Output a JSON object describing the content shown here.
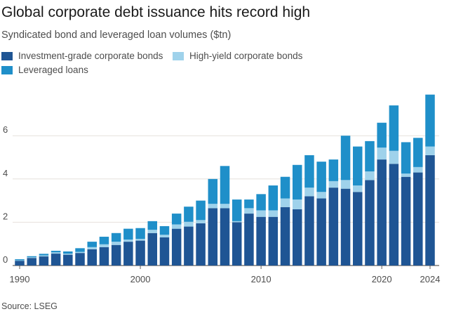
{
  "header": {
    "title": "Global corporate debt issuance hits record high",
    "subtitle": "Syndicated bond and leveraged loan volumes ($tn)"
  },
  "legend": [
    {
      "label": "Investment-grade corporate bonds",
      "color": "#1f5594"
    },
    {
      "label": "High-yield corporate bonds",
      "color": "#9fd2eb"
    },
    {
      "label": "Leveraged loans",
      "color": "#1f8fc9"
    }
  ],
  "source": "Source: LSEG",
  "chart_data": {
    "type": "bar",
    "stacked": true,
    "title": "Global corporate debt issuance hits record high",
    "subtitle": "Syndicated bond and leveraged loan volumes ($tn)",
    "xlabel": "",
    "ylabel": "",
    "ylim": [
      0,
      8
    ],
    "yticks": [
      0,
      2,
      4,
      6
    ],
    "xticks": [
      1990,
      2000,
      2010,
      2020,
      2024
    ],
    "grid": true,
    "legend_position": "top-left",
    "categories": [
      1990,
      1991,
      1992,
      1993,
      1994,
      1995,
      1996,
      1997,
      1998,
      1999,
      2000,
      2001,
      2002,
      2003,
      2004,
      2005,
      2006,
      2007,
      2008,
      2009,
      2010,
      2011,
      2012,
      2013,
      2014,
      2015,
      2016,
      2017,
      2018,
      2019,
      2020,
      2021,
      2022,
      2023,
      2024
    ],
    "series": [
      {
        "name": "Investment-grade corporate bonds",
        "color": "#1f5594",
        "values": [
          0.22,
          0.35,
          0.42,
          0.55,
          0.5,
          0.58,
          0.75,
          0.85,
          0.95,
          1.1,
          1.15,
          1.5,
          1.3,
          1.7,
          1.8,
          1.95,
          2.65,
          2.65,
          2.0,
          2.4,
          2.25,
          2.25,
          2.7,
          2.6,
          3.2,
          3.1,
          3.6,
          3.55,
          3.4,
          3.95,
          4.9,
          4.7,
          4.1,
          4.3,
          5.1
        ]
      },
      {
        "name": "High-yield corporate bonds",
        "color": "#9fd2eb",
        "values": [
          0.02,
          0.03,
          0.05,
          0.06,
          0.05,
          0.05,
          0.1,
          0.13,
          0.15,
          0.1,
          0.08,
          0.15,
          0.12,
          0.2,
          0.22,
          0.15,
          0.2,
          0.2,
          0.05,
          0.25,
          0.3,
          0.3,
          0.4,
          0.45,
          0.4,
          0.3,
          0.3,
          0.4,
          0.3,
          0.4,
          0.55,
          0.6,
          0.15,
          0.25,
          0.4
        ]
      },
      {
        "name": "Leveraged loans",
        "color": "#1f8fc9",
        "values": [
          0.05,
          0.05,
          0.07,
          0.07,
          0.1,
          0.17,
          0.25,
          0.35,
          0.4,
          0.5,
          0.5,
          0.4,
          0.4,
          0.5,
          0.7,
          0.9,
          1.15,
          1.75,
          1.0,
          0.4,
          0.75,
          1.15,
          1.0,
          1.6,
          1.5,
          1.4,
          1.0,
          2.05,
          1.8,
          1.4,
          1.15,
          2.1,
          1.45,
          1.35,
          2.4
        ]
      }
    ]
  }
}
